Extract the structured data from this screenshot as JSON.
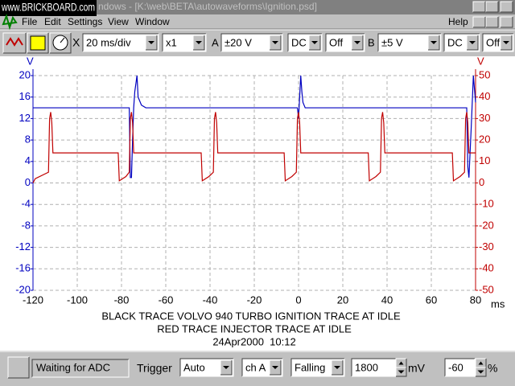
{
  "window": {
    "watermark": "www.BRICKBOARD.com",
    "title": "ndows - [K:\\web\\BETA\\autowaveforms\\Ignition.psd]"
  },
  "menu": [
    "File",
    "Edit",
    "Settings",
    "View",
    "Window",
    "Help"
  ],
  "toolbar": {
    "x_label": "X",
    "timebase": "20 ms/div",
    "multiplier": "x1",
    "a_label": "A",
    "a_range": "±20 V",
    "a_coupling": "DC",
    "a_off": "Off",
    "b_label": "B",
    "b_range": "±5 V",
    "b_coupling": "DC",
    "b_off": "Off"
  },
  "chart_data": {
    "type": "line",
    "title": "BLACK TRACE VOLVO 940 TURBO IGNITION TRACE AT IDLE",
    "subtitle": "RED TRACE INJECTOR TRACE AT IDLE",
    "date": "24Apr2000  10:12",
    "x_unit": "ms",
    "y_unit": "V",
    "y2_unit": "V",
    "x": [
      -120,
      -119,
      -113,
      -112.5,
      -112,
      -111.5,
      -111,
      -110.5,
      -110,
      -81.5,
      -81,
      -78,
      -76.5,
      -76,
      -75.5,
      -75,
      -74.5,
      -74,
      -73,
      -72.5,
      -71,
      -69,
      -44,
      -43.5,
      -40.5,
      -38.5,
      -38,
      -37.5,
      -37,
      -36.5,
      -6.5,
      -6,
      -3,
      -1,
      -0.5,
      0,
      0.5,
      1,
      1.5,
      2,
      3,
      31.5,
      32,
      35,
      37,
      37.5,
      38,
      38.5,
      39,
      69.5,
      70,
      73,
      75,
      75.5,
      76,
      76.5,
      77,
      78,
      79,
      80
    ],
    "series": [
      {
        "color": "#0000c0",
        "values": [
          14,
          14,
          14,
          14,
          14,
          14,
          14,
          14,
          14,
          14,
          14,
          14,
          14,
          1,
          1,
          8,
          14,
          17,
          20,
          16,
          14.5,
          14,
          14,
          14,
          14,
          14,
          14,
          14,
          14,
          14,
          14,
          14,
          14,
          14,
          14,
          12,
          16,
          20,
          17,
          15,
          14,
          14,
          14,
          14,
          14,
          14,
          14,
          14,
          14,
          14,
          14,
          14,
          14,
          14,
          14,
          3,
          1,
          10,
          20,
          15
        ]
      },
      {
        "color": "#c00000",
        "axis": "y2",
        "values": [
          0,
          2,
          5,
          30,
          33,
          28,
          14,
          14,
          14,
          14,
          1,
          3,
          5,
          30,
          33,
          28,
          14,
          14,
          14,
          14,
          14,
          14,
          14,
          1,
          3,
          5,
          30,
          33,
          28,
          14,
          14,
          1,
          3,
          5,
          30,
          33,
          28,
          14,
          14,
          14,
          14,
          14,
          1,
          3,
          5,
          30,
          33,
          28,
          14,
          14,
          1,
          3,
          5,
          30,
          33,
          28,
          14,
          14,
          14,
          14
        ]
      }
    ],
    "xlim": [
      -120,
      80
    ],
    "xticks": [
      -120,
      -100,
      -80,
      -60,
      -40,
      -20,
      0,
      20,
      40,
      60,
      80
    ],
    "ylim": [
      -20,
      20
    ],
    "yticks": [
      20,
      16,
      12,
      8,
      4,
      0,
      -4,
      -8,
      -12,
      -16,
      -20
    ],
    "y2lim": [
      -50,
      50
    ],
    "y2ticks": [
      50,
      40,
      30,
      20,
      10,
      0,
      -10,
      -20,
      -30,
      -40,
      -50
    ],
    "grid": true
  },
  "status_bar": {
    "status": "Waiting for ADC",
    "trigger_label": "Trigger",
    "trigger_mode": "Auto",
    "trigger_channel": "ch A",
    "trigger_edge": "Falling",
    "trigger_level": "1800",
    "level_unit": "mV",
    "pretrigger": "-60",
    "pretrigger_unit": "%"
  }
}
